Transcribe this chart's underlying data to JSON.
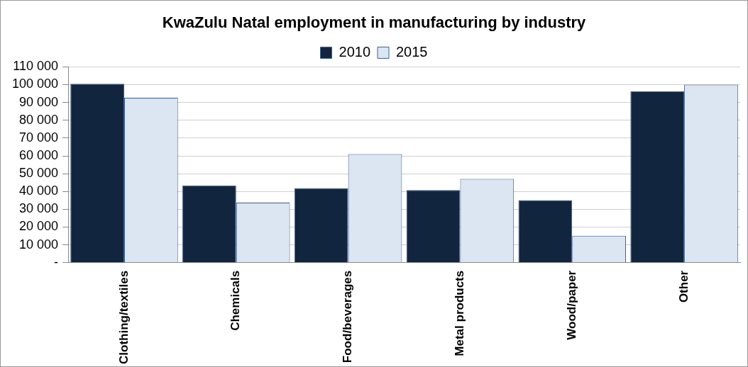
{
  "chart_data": {
    "type": "bar",
    "title": "KwaZulu Natal employment in manufacturing by industry",
    "categories": [
      "Clothing/textiles",
      "Chemicals",
      "Food/beverages",
      "Metal products",
      "Wood/paper",
      "Other"
    ],
    "series": [
      {
        "name": "2010",
        "color": "#12253f",
        "values": [
          100500,
          43400,
          41900,
          40800,
          35100,
          96200
        ]
      },
      {
        "name": "2015",
        "color": "#dce6f2",
        "values": [
          92600,
          33700,
          61000,
          47100,
          15100,
          100000
        ]
      }
    ],
    "ylim": [
      0,
      110000
    ],
    "yticks": [
      {
        "value": 0,
        "label": "-"
      },
      {
        "value": 10000,
        "label": "10 000"
      },
      {
        "value": 20000,
        "label": "20 000"
      },
      {
        "value": 30000,
        "label": "30 000"
      },
      {
        "value": 40000,
        "label": "40 000"
      },
      {
        "value": 50000,
        "label": "50 000"
      },
      {
        "value": 60000,
        "label": "60 000"
      },
      {
        "value": 70000,
        "label": "70 000"
      },
      {
        "value": 80000,
        "label": "80 000"
      },
      {
        "value": 90000,
        "label": "90 000"
      },
      {
        "value": 100000,
        "label": "100 000"
      },
      {
        "value": 110000,
        "label": "110 000"
      }
    ],
    "grid": "y",
    "legend": "top"
  }
}
